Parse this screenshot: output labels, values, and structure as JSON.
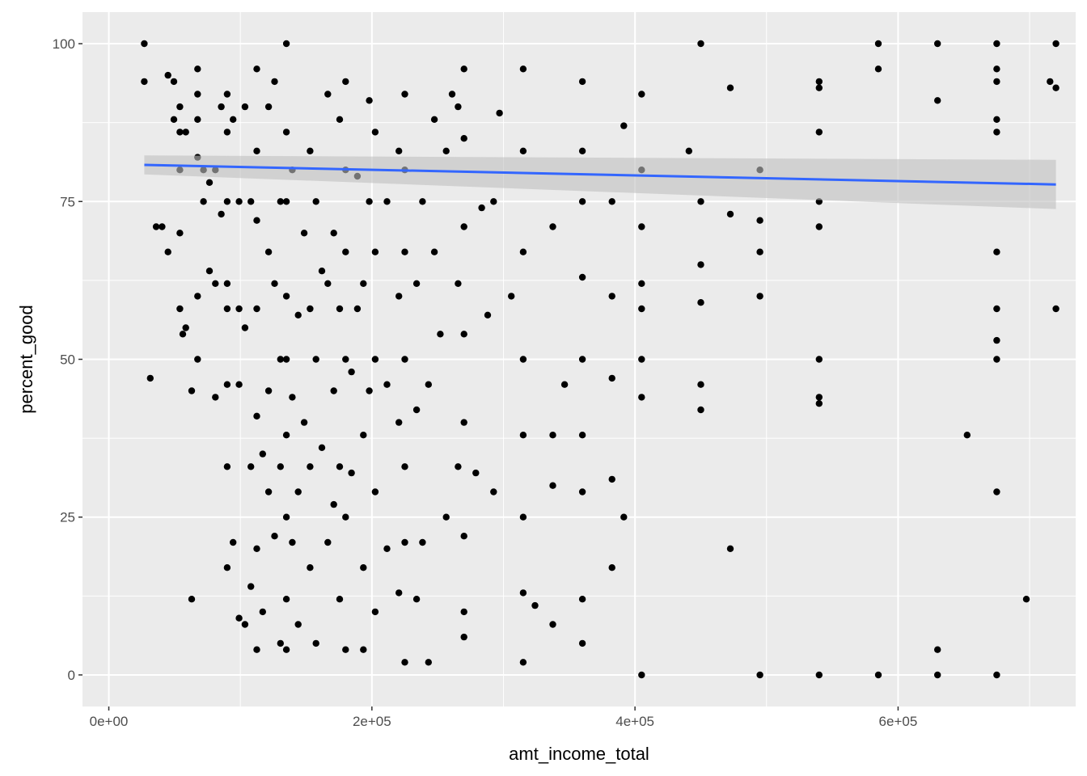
{
  "chart_data": {
    "type": "scatter",
    "title": "",
    "xlabel": "amt_income_total",
    "ylabel": "percent_good",
    "xlim": [
      -20000,
      735000
    ],
    "ylim": [
      -5,
      105
    ],
    "x_ticks": [
      {
        "value": 0,
        "label": "0e+00"
      },
      {
        "value": 200000,
        "label": "2e+05"
      },
      {
        "value": 400000,
        "label": "4e+05"
      },
      {
        "value": 600000,
        "label": "6e+05"
      }
    ],
    "y_ticks": [
      {
        "value": 0,
        "label": "0"
      },
      {
        "value": 25,
        "label": "25"
      },
      {
        "value": 50,
        "label": "50"
      },
      {
        "value": 75,
        "label": "75"
      },
      {
        "value": 100,
        "label": "100"
      }
    ],
    "grid": true,
    "panel_background": "#ebebeb",
    "grid_color": "#ffffff",
    "point_color": "#000000",
    "smooth_line": {
      "method": "lm",
      "color": "#3366ff",
      "band_color": "#bfbfbf",
      "x": [
        27000,
        720000
      ],
      "y": [
        80.8,
        77.7
      ],
      "ci_lower": [
        79.3,
        73.8
      ],
      "ci_upper": [
        82.3,
        81.6
      ]
    },
    "points": [
      [
        27000,
        94
      ],
      [
        27000,
        100
      ],
      [
        31500,
        47
      ],
      [
        36000,
        71
      ],
      [
        40500,
        71
      ],
      [
        45000,
        67
      ],
      [
        45000,
        95
      ],
      [
        49500,
        88
      ],
      [
        49500,
        94
      ],
      [
        54000,
        58
      ],
      [
        54000,
        70
      ],
      [
        54000,
        80
      ],
      [
        54000,
        86
      ],
      [
        54000,
        90
      ],
      [
        56250,
        54
      ],
      [
        58500,
        55
      ],
      [
        58500,
        86
      ],
      [
        63000,
        12
      ],
      [
        63000,
        45
      ],
      [
        67500,
        50
      ],
      [
        67500,
        60
      ],
      [
        67500,
        82
      ],
      [
        67500,
        88
      ],
      [
        67500,
        92
      ],
      [
        67500,
        96
      ],
      [
        72000,
        75
      ],
      [
        72000,
        80
      ],
      [
        76500,
        64
      ],
      [
        76500,
        78
      ],
      [
        81000,
        44
      ],
      [
        81000,
        62
      ],
      [
        81000,
        80
      ],
      [
        85500,
        73
      ],
      [
        85500,
        90
      ],
      [
        90000,
        17
      ],
      [
        90000,
        33
      ],
      [
        90000,
        46
      ],
      [
        90000,
        58
      ],
      [
        90000,
        62
      ],
      [
        90000,
        75
      ],
      [
        90000,
        86
      ],
      [
        90000,
        92
      ],
      [
        94500,
        21
      ],
      [
        94500,
        88
      ],
      [
        99000,
        9
      ],
      [
        99000,
        46
      ],
      [
        99000,
        58
      ],
      [
        99000,
        75
      ],
      [
        103500,
        8
      ],
      [
        103500,
        55
      ],
      [
        103500,
        90
      ],
      [
        108000,
        14
      ],
      [
        108000,
        33
      ],
      [
        108000,
        75
      ],
      [
        112500,
        4
      ],
      [
        112500,
        20
      ],
      [
        112500,
        41
      ],
      [
        112500,
        58
      ],
      [
        112500,
        72
      ],
      [
        112500,
        83
      ],
      [
        112500,
        96
      ],
      [
        117000,
        10
      ],
      [
        117000,
        35
      ],
      [
        121500,
        29
      ],
      [
        121500,
        45
      ],
      [
        121500,
        67
      ],
      [
        121500,
        90
      ],
      [
        126000,
        22
      ],
      [
        126000,
        62
      ],
      [
        126000,
        94
      ],
      [
        130500,
        5
      ],
      [
        130500,
        33
      ],
      [
        130500,
        50
      ],
      [
        130500,
        75
      ],
      [
        135000,
        4
      ],
      [
        135000,
        12
      ],
      [
        135000,
        25
      ],
      [
        135000,
        38
      ],
      [
        135000,
        50
      ],
      [
        135000,
        60
      ],
      [
        135000,
        75
      ],
      [
        135000,
        86
      ],
      [
        135000,
        100
      ],
      [
        139500,
        21
      ],
      [
        139500,
        44
      ],
      [
        139500,
        80
      ],
      [
        144000,
        8
      ],
      [
        144000,
        29
      ],
      [
        144000,
        57
      ],
      [
        148500,
        40
      ],
      [
        148500,
        70
      ],
      [
        153000,
        17
      ],
      [
        153000,
        33
      ],
      [
        153000,
        58
      ],
      [
        153000,
        83
      ],
      [
        157500,
        5
      ],
      [
        157500,
        50
      ],
      [
        157500,
        75
      ],
      [
        162000,
        36
      ],
      [
        162000,
        64
      ],
      [
        166500,
        21
      ],
      [
        166500,
        62
      ],
      [
        166500,
        92
      ],
      [
        171000,
        27
      ],
      [
        171000,
        45
      ],
      [
        171000,
        70
      ],
      [
        175500,
        12
      ],
      [
        175500,
        33
      ],
      [
        175500,
        58
      ],
      [
        175500,
        88
      ],
      [
        180000,
        4
      ],
      [
        180000,
        25
      ],
      [
        180000,
        50
      ],
      [
        180000,
        67
      ],
      [
        180000,
        80
      ],
      [
        180000,
        94
      ],
      [
        184500,
        32
      ],
      [
        184500,
        48
      ],
      [
        189000,
        58
      ],
      [
        189000,
        79
      ],
      [
        193500,
        4
      ],
      [
        193500,
        17
      ],
      [
        193500,
        38
      ],
      [
        193500,
        62
      ],
      [
        198000,
        45
      ],
      [
        198000,
        75
      ],
      [
        198000,
        91
      ],
      [
        202500,
        10
      ],
      [
        202500,
        29
      ],
      [
        202500,
        50
      ],
      [
        202500,
        67
      ],
      [
        202500,
        86
      ],
      [
        211500,
        20
      ],
      [
        211500,
        46
      ],
      [
        211500,
        75
      ],
      [
        220500,
        13
      ],
      [
        220500,
        40
      ],
      [
        220500,
        60
      ],
      [
        220500,
        83
      ],
      [
        225000,
        2
      ],
      [
        225000,
        21
      ],
      [
        225000,
        33
      ],
      [
        225000,
        50
      ],
      [
        225000,
        67
      ],
      [
        225000,
        80
      ],
      [
        225000,
        92
      ],
      [
        234000,
        12
      ],
      [
        234000,
        42
      ],
      [
        234000,
        62
      ],
      [
        238500,
        21
      ],
      [
        238500,
        75
      ],
      [
        243000,
        2
      ],
      [
        243000,
        46
      ],
      [
        247500,
        67
      ],
      [
        247500,
        88
      ],
      [
        252000,
        54
      ],
      [
        256500,
        25
      ],
      [
        256500,
        83
      ],
      [
        261000,
        92
      ],
      [
        265500,
        33
      ],
      [
        265500,
        62
      ],
      [
        265500,
        90
      ],
      [
        270000,
        6
      ],
      [
        270000,
        10
      ],
      [
        270000,
        22
      ],
      [
        270000,
        40
      ],
      [
        270000,
        54
      ],
      [
        270000,
        71
      ],
      [
        270000,
        85
      ],
      [
        270000,
        96
      ],
      [
        279000,
        32
      ],
      [
        283500,
        74
      ],
      [
        288000,
        57
      ],
      [
        292500,
        29
      ],
      [
        292500,
        75
      ],
      [
        297000,
        89
      ],
      [
        306000,
        60
      ],
      [
        315000,
        2
      ],
      [
        315000,
        13
      ],
      [
        315000,
        25
      ],
      [
        315000,
        38
      ],
      [
        315000,
        50
      ],
      [
        315000,
        67
      ],
      [
        315000,
        83
      ],
      [
        315000,
        96
      ],
      [
        324000,
        11
      ],
      [
        337500,
        8
      ],
      [
        337500,
        30
      ],
      [
        337500,
        38
      ],
      [
        337500,
        71
      ],
      [
        346500,
        46
      ],
      [
        360000,
        5
      ],
      [
        360000,
        12
      ],
      [
        360000,
        29
      ],
      [
        360000,
        38
      ],
      [
        360000,
        50
      ],
      [
        360000,
        63
      ],
      [
        360000,
        75
      ],
      [
        360000,
        83
      ],
      [
        360000,
        94
      ],
      [
        382500,
        17
      ],
      [
        382500,
        31
      ],
      [
        382500,
        47
      ],
      [
        382500,
        60
      ],
      [
        382500,
        75
      ],
      [
        391500,
        25
      ],
      [
        391500,
        87
      ],
      [
        405000,
        0
      ],
      [
        405000,
        44
      ],
      [
        405000,
        50
      ],
      [
        405000,
        58
      ],
      [
        405000,
        62
      ],
      [
        405000,
        71
      ],
      [
        405000,
        80
      ],
      [
        405000,
        92
      ],
      [
        441000,
        83
      ],
      [
        450000,
        42
      ],
      [
        450000,
        46
      ],
      [
        450000,
        59
      ],
      [
        450000,
        65
      ],
      [
        450000,
        75
      ],
      [
        450000,
        100
      ],
      [
        472500,
        20
      ],
      [
        472500,
        73
      ],
      [
        472500,
        93
      ],
      [
        495000,
        0
      ],
      [
        495000,
        60
      ],
      [
        495000,
        67
      ],
      [
        495000,
        72
      ],
      [
        495000,
        80
      ],
      [
        540000,
        0
      ],
      [
        540000,
        43
      ],
      [
        540000,
        44
      ],
      [
        540000,
        50
      ],
      [
        540000,
        71
      ],
      [
        540000,
        75
      ],
      [
        540000,
        86
      ],
      [
        540000,
        93
      ],
      [
        540000,
        94
      ],
      [
        585000,
        0
      ],
      [
        585000,
        96
      ],
      [
        585000,
        100
      ],
      [
        630000,
        0
      ],
      [
        630000,
        4
      ],
      [
        630000,
        91
      ],
      [
        630000,
        100
      ],
      [
        652500,
        38
      ],
      [
        675000,
        0
      ],
      [
        675000,
        29
      ],
      [
        675000,
        50
      ],
      [
        675000,
        53
      ],
      [
        675000,
        58
      ],
      [
        675000,
        67
      ],
      [
        675000,
        86
      ],
      [
        675000,
        88
      ],
      [
        675000,
        94
      ],
      [
        675000,
        96
      ],
      [
        675000,
        100
      ],
      [
        697500,
        12
      ],
      [
        715500,
        94
      ],
      [
        720000,
        58
      ],
      [
        720000,
        93
      ],
      [
        720000,
        100
      ]
    ]
  }
}
